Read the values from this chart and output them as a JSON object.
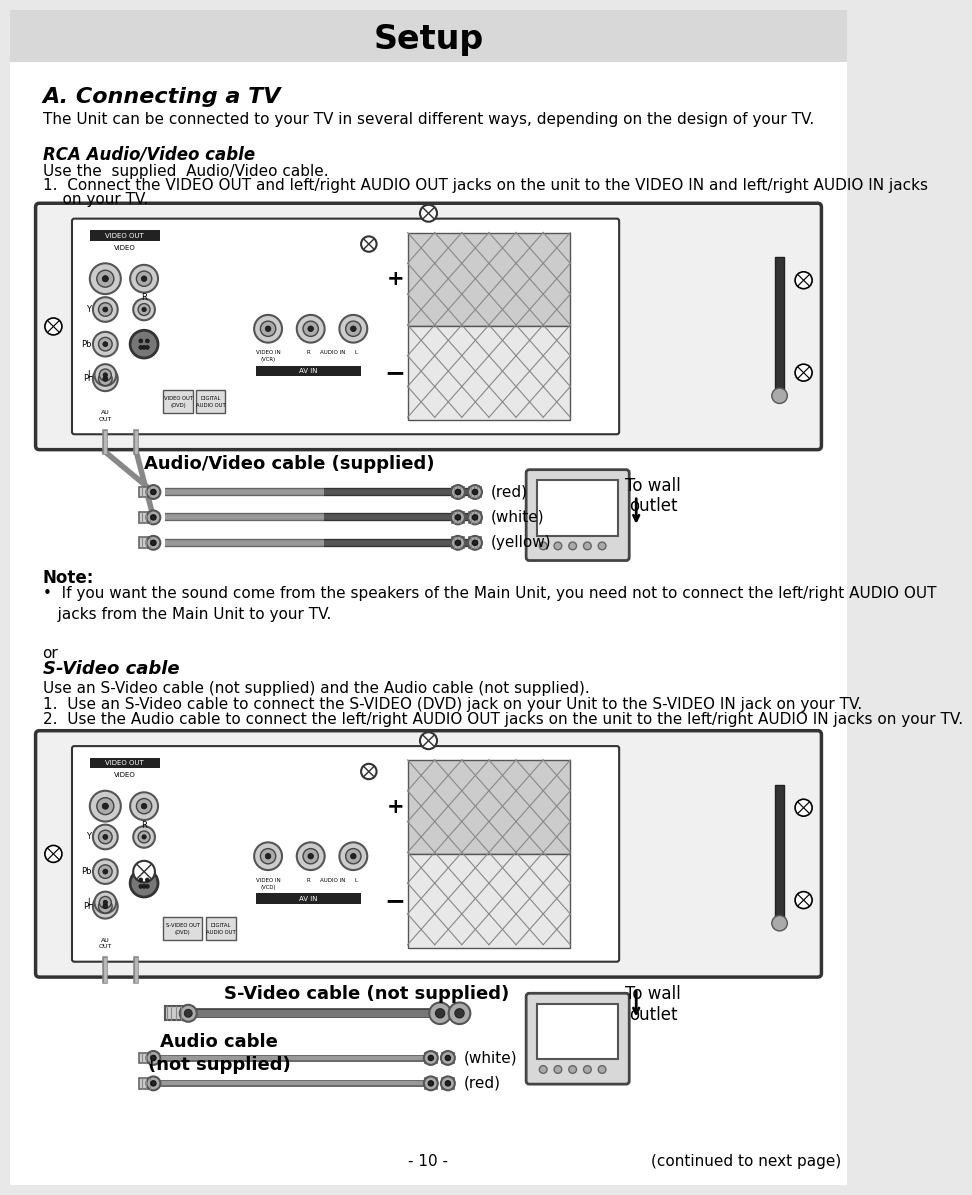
{
  "page_bg": "#e8e8e8",
  "header_bg": "#d8d8d8",
  "content_bg": "#ffffff",
  "header_text": "Setup",
  "section_title": "A. Connecting a TV",
  "section_desc": "The Unit can be connected to your TV in several different ways, depending on the design of your TV.",
  "sub1_title": "RCA Audio/Video cable",
  "sub1_l1": "Use the  supplied  Audio/Video cable.",
  "sub1_l2": "1.  Connect the VIDEO OUT and left/right AUDIO OUT jacks on the unit to the VIDEO IN and left/right AUDIO IN jacks",
  "sub1_l3": "    on your TV.",
  "diag1_label": "Audio/Video cable (supplied)",
  "diag1_red": "(red)",
  "diag1_white": "(white)",
  "diag1_yellow": "(yellow)",
  "wall1": "To wall\noutlet",
  "note_title": "Note:",
  "note_body": "•  If you want the sound come from the speakers of the Main Unit, you need not to connect the left/right AUDIO OUT\n   jacks from the Main Unit to your TV.",
  "or_text": "or",
  "sub2_title": "S-Video cable",
  "sub2_l1": "Use an S-Video cable (not supplied) and the Audio cable (not supplied).",
  "sub2_l2": "1.  Use an S-Video cable to connect the S-VIDEO (DVD) jack on your Unit to the S-VIDEO IN jack on your TV.",
  "sub2_l3": "2.  Use the Audio cable to connect the left/right AUDIO OUT jacks on the unit to the left/right AUDIO IN jacks on your TV.",
  "diag2_svlabel": "S-Video cable (not supplied)",
  "diag2_aulabel": "Audio cable\n(not supplied)",
  "diag2_white": "(white)",
  "diag2_red": "(red)",
  "wall2": "To wall\noutlet",
  "footer_page": "- 10 -",
  "footer_cont": "(continued to next page)"
}
